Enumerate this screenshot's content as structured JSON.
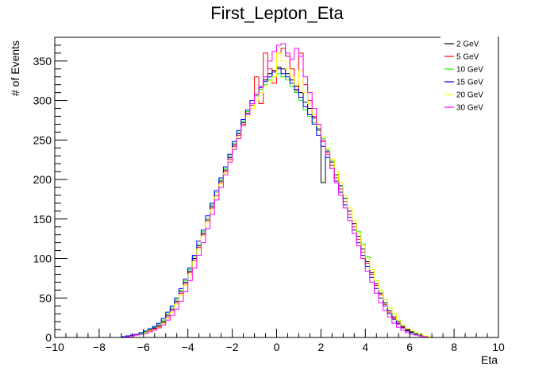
{
  "chart_data": {
    "type": "histogram-step",
    "title": "First_Lepton_Eta",
    "xlabel": "Eta",
    "ylabel": "# of Events",
    "xlim": [
      -10,
      10
    ],
    "ylim": [
      0,
      380
    ],
    "xticks": [
      -10,
      -8,
      -6,
      -4,
      -2,
      0,
      2,
      4,
      6,
      8,
      10
    ],
    "yticks": [
      0,
      50,
      100,
      150,
      200,
      250,
      300,
      350
    ],
    "bin_width": 0.2,
    "grid": false,
    "legend_position": "top-right",
    "series": [
      {
        "name": "2 GeV",
        "color": "#000000",
        "x_start": -7.0,
        "values": [
          1,
          2,
          3,
          4,
          6,
          8,
          9,
          12,
          15,
          20,
          28,
          36,
          46,
          58,
          70,
          84,
          100,
          116,
          132,
          150,
          166,
          184,
          198,
          212,
          228,
          244,
          258,
          272,
          284,
          296,
          306,
          318,
          326,
          334,
          338,
          342,
          340,
          334,
          326,
          318,
          310,
          298,
          290,
          278,
          264,
          196,
          236,
          222,
          206,
          192,
          176,
          160,
          144,
          128,
          112,
          96,
          82,
          68,
          56,
          44,
          34,
          26,
          20,
          14,
          10,
          7,
          5,
          3,
          2,
          1
        ]
      },
      {
        "name": "5 GeV",
        "color": "#ff0000",
        "x_start": -7.0,
        "values": [
          1,
          2,
          3,
          4,
          5,
          7,
          9,
          11,
          14,
          19,
          26,
          34,
          44,
          56,
          68,
          82,
          98,
          114,
          130,
          148,
          164,
          180,
          196,
          210,
          226,
          242,
          256,
          270,
          282,
          294,
          330,
          296,
          360,
          340,
          322,
          360,
          366,
          356,
          340,
          312,
          360,
          320,
          300,
          280,
          262,
          248,
          234,
          218,
          202,
          188,
          172,
          156,
          140,
          124,
          108,
          94,
          80,
          66,
          54,
          42,
          32,
          24,
          18,
          13,
          9,
          6,
          4,
          3,
          2,
          1
        ]
      },
      {
        "name": "10 GeV",
        "color": "#00ff00",
        "x_start": -7.0,
        "values": [
          0,
          1,
          2,
          3,
          5,
          7,
          10,
          13,
          17,
          22,
          30,
          38,
          48,
          60,
          72,
          86,
          102,
          118,
          134,
          150,
          168,
          184,
          200,
          214,
          230,
          246,
          260,
          274,
          286,
          296,
          306,
          314,
          320,
          326,
          330,
          334,
          330,
          326,
          318,
          310,
          300,
          288,
          280,
          272,
          262,
          252,
          238,
          224,
          210,
          196,
          180,
          164,
          148,
          134,
          118,
          102,
          86,
          72,
          60,
          48,
          38,
          30,
          22,
          16,
          11,
          8,
          5,
          3,
          2,
          1
        ]
      },
      {
        "name": "15 GeV",
        "color": "#0000ff",
        "x_start": -7.0,
        "values": [
          1,
          2,
          3,
          4,
          6,
          8,
          11,
          14,
          18,
          24,
          32,
          40,
          50,
          62,
          74,
          88,
          104,
          122,
          136,
          154,
          170,
          186,
          202,
          216,
          232,
          248,
          262,
          276,
          288,
          300,
          308,
          316,
          324,
          330,
          336,
          340,
          334,
          330,
          322,
          314,
          304,
          292,
          282,
          270,
          256,
          242,
          228,
          214,
          198,
          184,
          168,
          152,
          136,
          120,
          104,
          90,
          76,
          62,
          50,
          40,
          30,
          23,
          17,
          12,
          8,
          6,
          4,
          2,
          1,
          1
        ]
      },
      {
        "name": "20 GeV",
        "color": "#ffff00",
        "x_start": -7.0,
        "values": [
          0,
          1,
          2,
          3,
          4,
          6,
          8,
          10,
          13,
          18,
          24,
          32,
          42,
          54,
          66,
          80,
          96,
          112,
          128,
          146,
          162,
          178,
          194,
          208,
          224,
          240,
          254,
          268,
          280,
          290,
          300,
          310,
          318,
          324,
          330,
          360,
          350,
          340,
          330,
          320,
          338,
          310,
          296,
          282,
          268,
          254,
          240,
          226,
          210,
          196,
          180,
          164,
          148,
          132,
          116,
          100,
          86,
          72,
          60,
          48,
          38,
          30,
          22,
          16,
          11,
          8,
          6,
          4,
          2,
          1
        ]
      },
      {
        "name": "30 GeV",
        "color": "#ff00ff",
        "x_start": -7.0,
        "values": [
          0,
          1,
          2,
          3,
          4,
          5,
          7,
          9,
          12,
          16,
          22,
          28,
          36,
          46,
          58,
          72,
          88,
          104,
          120,
          138,
          156,
          174,
          190,
          206,
          222,
          238,
          252,
          268,
          282,
          296,
          308,
          318,
          330,
          350,
          362,
          370,
          372,
          360,
          352,
          366,
          356,
          330,
          310,
          290,
          270,
          250,
          232,
          214,
          196,
          180,
          164,
          148,
          132,
          116,
          100,
          84,
          70,
          56,
          44,
          34,
          26,
          18,
          13,
          9,
          6,
          4,
          3,
          2,
          1,
          0
        ]
      }
    ]
  }
}
